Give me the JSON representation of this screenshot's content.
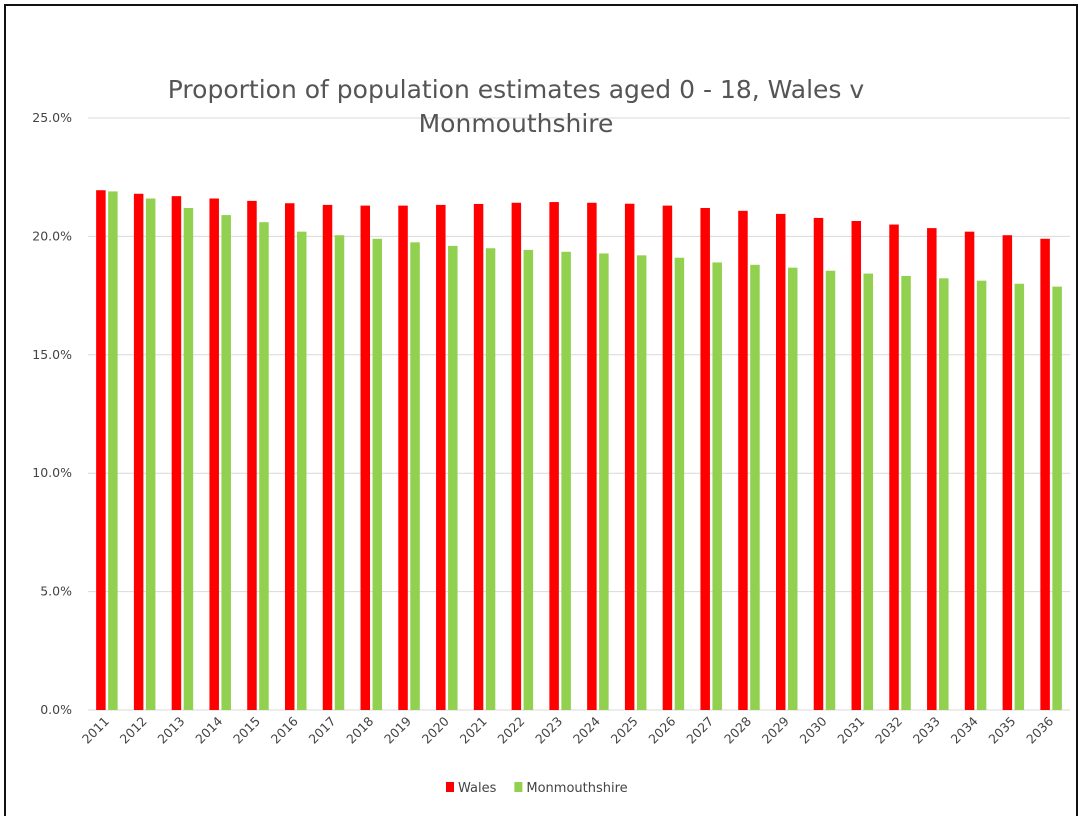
{
  "chart_data": {
    "type": "bar",
    "title_lines": [
      "Proportion of population estimates aged 0 - 18, Wales v",
      "Monmouthshire"
    ],
    "xlabel": "",
    "ylabel": "",
    "categories": [
      "2011",
      "2012",
      "2013",
      "2014",
      "2015",
      "2016",
      "2017",
      "2018",
      "2019",
      "2020",
      "2021",
      "2022",
      "2023",
      "2024",
      "2025",
      "2026",
      "2027",
      "2028",
      "2029",
      "2030",
      "2031",
      "2032",
      "2033",
      "2034",
      "2035",
      "2036"
    ],
    "series": [
      {
        "name": "Wales",
        "color": "#ff0000",
        "values": [
          21.95,
          21.8,
          21.7,
          21.6,
          21.5,
          21.4,
          21.33,
          21.3,
          21.3,
          21.33,
          21.37,
          21.42,
          21.45,
          21.42,
          21.38,
          21.3,
          21.2,
          21.08,
          20.95,
          20.78,
          20.65,
          20.5,
          20.35,
          20.2,
          20.05,
          19.9
        ]
      },
      {
        "name": "Monmouthshire",
        "color": "#92d050",
        "values": [
          21.9,
          21.6,
          21.2,
          20.9,
          20.6,
          20.2,
          20.05,
          19.9,
          19.75,
          19.6,
          19.5,
          19.43,
          19.35,
          19.28,
          19.2,
          19.1,
          18.9,
          18.8,
          18.68,
          18.55,
          18.43,
          18.33,
          18.23,
          18.13,
          18.0,
          17.88
        ]
      }
    ],
    "y_ticks": [
      "0.0%",
      "5.0%",
      "10.0%",
      "15.0%",
      "20.0%",
      "25.0%"
    ],
    "ylim": [
      0,
      25
    ],
    "y_tick_step": 5,
    "grid": true,
    "gridline_color": "#d9d9d9",
    "legend_position": "bottom"
  }
}
